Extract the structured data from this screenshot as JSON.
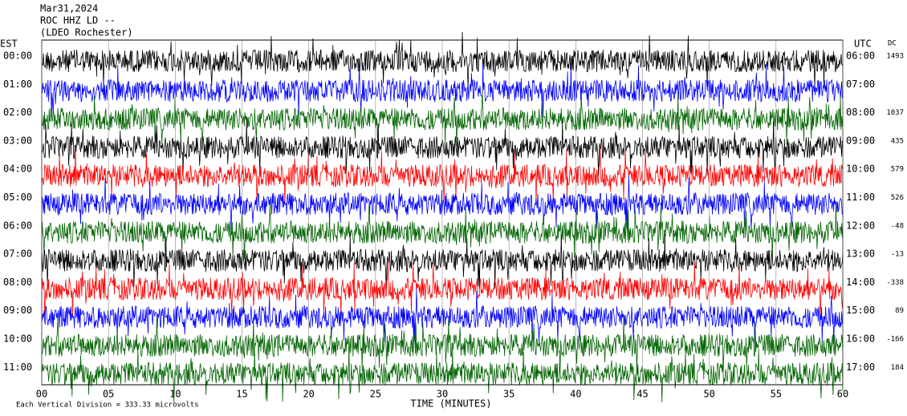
{
  "chart_data": {
    "type": "helicorder",
    "title_lines": [
      "Mar31,2024",
      "ROC HHZ LD --",
      "(LDEO Rochester)"
    ],
    "left_axis_title": "EST",
    "right_axis_title": "UTC",
    "dc_title": "DC",
    "categories": [
      "00:00",
      "01:00",
      "02:00",
      "03:00",
      "04:00",
      "05:00",
      "06:00",
      "07:00",
      "08:00",
      "09:00",
      "10:00",
      "11:00"
    ],
    "categories_utc": [
      "06:00",
      "07:00",
      "08:00",
      "09:00",
      "10:00",
      "11:00",
      "12:00",
      "13:00",
      "14:00",
      "15:00",
      "16:00",
      "17:00"
    ],
    "dc": [
      1493,
      null,
      1037,
      435,
      579,
      526,
      -48,
      -13,
      -338,
      89,
      -166,
      184
    ],
    "trace_colors": [
      "#000000",
      "#0000ff",
      "#006400",
      "#000000",
      "#ff0000",
      "#0000ff",
      "#006400",
      "#000000",
      "#ff0000",
      "#0000ff",
      "#006400",
      "#006400"
    ],
    "xlabel": "TIME (MINUTES)",
    "xlim": [
      0,
      60
    ],
    "xticks": [
      {
        "value": 0,
        "label": "00"
      },
      {
        "value": 5,
        "label": "05"
      },
      10,
      15,
      20,
      25,
      30,
      35,
      40,
      45,
      50,
      55,
      60
    ],
    "footnote": "Each Vertical Division =  333.33 microvolts"
  }
}
